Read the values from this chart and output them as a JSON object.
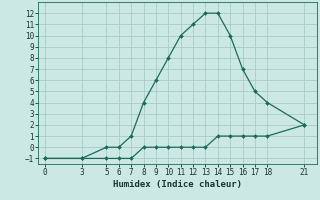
{
  "xlabel": "Humidex (Indice chaleur)",
  "bg_color": "#cce8e4",
  "grid_color": "#a8ccc8",
  "line_color": "#1a6b5a",
  "upper_x": [
    0,
    3,
    5,
    6,
    7,
    8,
    9,
    10,
    11,
    12,
    13,
    14,
    15,
    16,
    17,
    18,
    21
  ],
  "upper_y": [
    -1,
    -1,
    0,
    0,
    1,
    4,
    6,
    8,
    10,
    11,
    12,
    12,
    10,
    7,
    5,
    4,
    2
  ],
  "lower_x": [
    0,
    3,
    5,
    6,
    7,
    8,
    9,
    10,
    11,
    12,
    13,
    14,
    15,
    16,
    17,
    18,
    21
  ],
  "lower_y": [
    -1,
    -1,
    -1,
    -1,
    -1,
    0,
    0,
    0,
    0,
    0,
    0,
    1,
    1,
    1,
    1,
    1,
    2
  ],
  "xlim": [
    -0.5,
    22
  ],
  "ylim": [
    -1.5,
    13
  ],
  "xticks": [
    0,
    3,
    5,
    6,
    7,
    8,
    9,
    10,
    11,
    12,
    13,
    14,
    15,
    16,
    17,
    18,
    21
  ],
  "yticks": [
    -1,
    0,
    1,
    2,
    3,
    4,
    5,
    6,
    7,
    8,
    9,
    10,
    11,
    12
  ],
  "xlabel_fontsize": 6.5,
  "tick_fontsize": 5.5
}
